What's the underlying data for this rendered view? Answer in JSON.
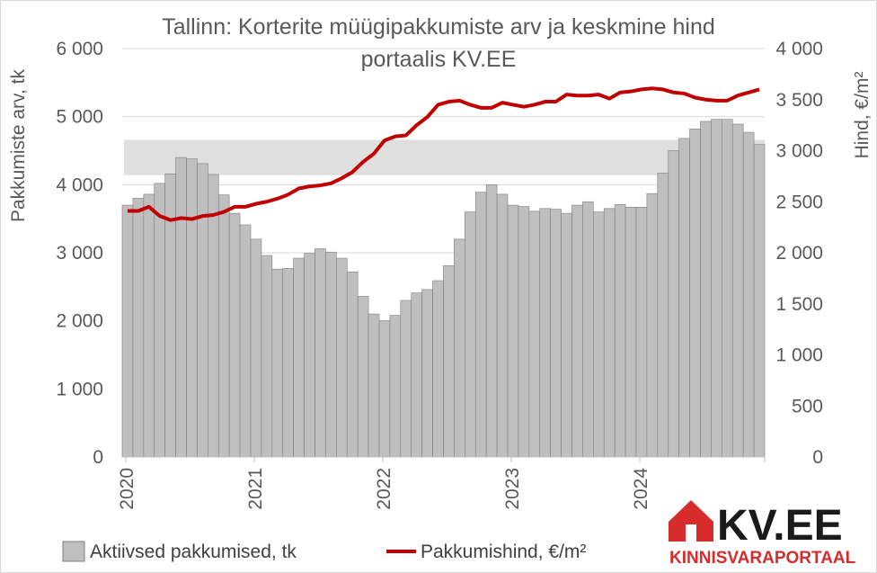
{
  "chart_data": {
    "type": "bar+line",
    "title": "Tallinn: Korterite müügipakkumiste arv ja keskmine hind",
    "title_line2": "portaalis KV.EE",
    "y_left_label": "Pakkumiste arv, tk",
    "y_right_label": "Hind, €/m²",
    "y_left_lim": [
      0,
      6000
    ],
    "y_right_lim": [
      0,
      4000
    ],
    "y_left_ticks": [
      "0",
      "1 000",
      "2 000",
      "3 000",
      "4 000",
      "5 000",
      "6 000"
    ],
    "y_right_ticks": [
      "0",
      "500",
      "1 000",
      "1 500",
      "2 000",
      "2 500",
      "3 000",
      "3 500",
      "4 000"
    ],
    "x_ticks": [
      "2020",
      "2021",
      "2022",
      "2023",
      "2024"
    ],
    "grid": true,
    "legend_position": "bottom",
    "colors": {
      "bars": "#bfbfbf",
      "bar_edge": "#7f7f7f",
      "line": "#c00000",
      "grid": "#d9d9d9",
      "highlight": "#d9d9d9"
    },
    "series": [
      {
        "name": "Aktiivsed pakkumised, tk",
        "kind": "bar",
        "axis": "left",
        "values": [
          3700,
          3800,
          3860,
          4020,
          4160,
          4400,
          4380,
          4310,
          4150,
          3850,
          3580,
          3410,
          3200,
          2960,
          2760,
          2770,
          2920,
          2990,
          3060,
          3010,
          2920,
          2720,
          2360,
          2100,
          2000,
          2080,
          2300,
          2410,
          2460,
          2590,
          2810,
          3200,
          3600,
          3890,
          4000,
          3860,
          3700,
          3680,
          3610,
          3650,
          3640,
          3580,
          3700,
          3750,
          3600,
          3650,
          3710,
          3670,
          3670,
          3870,
          4170,
          4500,
          4680,
          4820,
          4930,
          4960,
          4960,
          4890,
          4770,
          4590
        ]
      },
      {
        "name": "Pakkumishind, €/m²",
        "kind": "line",
        "axis": "right",
        "values": [
          2410,
          2410,
          2450,
          2360,
          2320,
          2340,
          2330,
          2360,
          2370,
          2400,
          2450,
          2450,
          2480,
          2500,
          2530,
          2570,
          2630,
          2650,
          2660,
          2680,
          2730,
          2790,
          2890,
          2970,
          3100,
          3140,
          3150,
          3250,
          3330,
          3450,
          3480,
          3490,
          3450,
          3420,
          3420,
          3470,
          3450,
          3430,
          3450,
          3480,
          3480,
          3550,
          3540,
          3540,
          3550,
          3510,
          3570,
          3580,
          3600,
          3610,
          3600,
          3570,
          3560,
          3520,
          3500,
          3490,
          3490,
          3540,
          3570,
          3600
        ]
      }
    ]
  },
  "logo": {
    "name": "KV.EE",
    "tagline": "KINNISVARAPORTAAL"
  }
}
